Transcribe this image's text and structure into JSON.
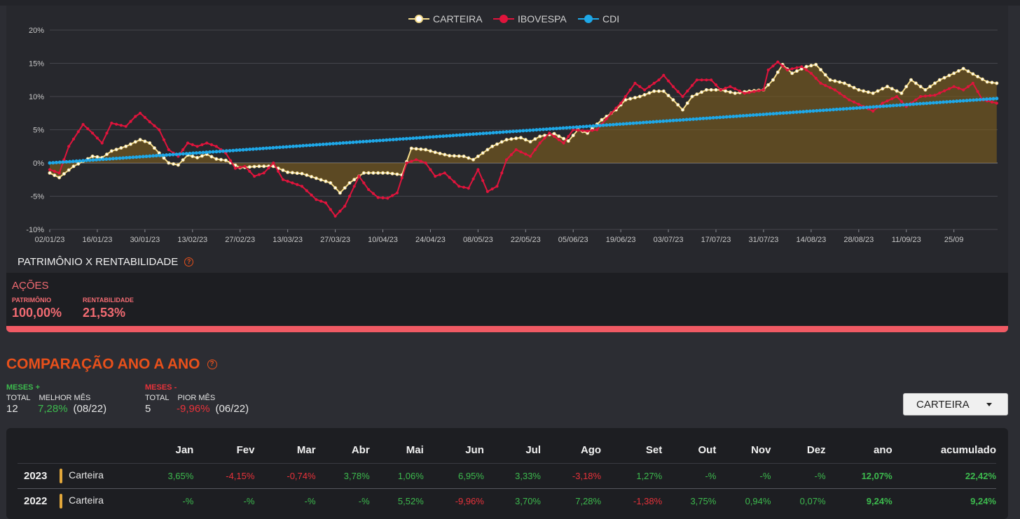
{
  "chart": {
    "legend": [
      {
        "label": "CARTEIRA",
        "color": "#f5dc8c"
      },
      {
        "label": "IBOVESPA",
        "color": "#e0143c"
      },
      {
        "label": "CDI",
        "color": "#1ea8e8"
      }
    ],
    "y_ticks": [
      "20%",
      "15%",
      "10%",
      "5%",
      "0%",
      "-5%",
      "-10%"
    ],
    "x_ticks": [
      "02/01/23",
      "16/01/23",
      "30/01/23",
      "13/02/23",
      "27/02/23",
      "13/03/23",
      "27/03/23",
      "10/04/23",
      "24/04/23",
      "08/05/23",
      "22/05/23",
      "05/06/23",
      "19/06/23",
      "03/07/23",
      "17/07/23",
      "31/07/23",
      "14/08/23",
      "28/08/23",
      "11/09/23",
      "25/09"
    ]
  },
  "chart_data": {
    "type": "line",
    "title": "",
    "ylim": [
      -10,
      20
    ],
    "y_unit": "%",
    "series": [
      {
        "name": "CARTEIRA",
        "color": "#f5dc8c",
        "filled": true,
        "points": [
          [
            0,
            -1.5
          ],
          [
            0.2,
            -2.2
          ],
          [
            0.5,
            -0.5
          ],
          [
            0.9,
            1.0
          ],
          [
            1.1,
            0.8
          ],
          [
            1.3,
            1.8
          ],
          [
            1.6,
            2.5
          ],
          [
            1.9,
            3.5
          ],
          [
            2.1,
            3.0
          ],
          [
            2.3,
            1.5
          ],
          [
            2.5,
            0
          ],
          [
            2.7,
            -0.3
          ],
          [
            2.9,
            1.2
          ],
          [
            3.1,
            0.8
          ],
          [
            3.3,
            1.3
          ],
          [
            3.5,
            0.6
          ],
          [
            3.7,
            0.4
          ],
          [
            4.0,
            -0.7
          ],
          [
            4.4,
            -0.5
          ],
          [
            4.7,
            -0.5
          ],
          [
            5.0,
            -1.4
          ],
          [
            5.3,
            -1.6
          ],
          [
            5.6,
            -2.3
          ],
          [
            5.9,
            -3.0
          ],
          [
            6.1,
            -4.5
          ],
          [
            6.3,
            -3.0
          ],
          [
            6.6,
            -1.5
          ],
          [
            6.9,
            -1.5
          ],
          [
            7.1,
            -1.5
          ],
          [
            7.4,
            -1.8
          ],
          [
            7.6,
            2.2
          ],
          [
            7.9,
            2.0
          ],
          [
            8.1,
            1.6
          ],
          [
            8.4,
            1.1
          ],
          [
            8.7,
            1.0
          ],
          [
            8.9,
            0.5
          ],
          [
            9.1,
            1.5
          ],
          [
            9.3,
            2.5
          ],
          [
            9.6,
            3.5
          ],
          [
            9.9,
            3.8
          ],
          [
            10.1,
            3.2
          ],
          [
            10.3,
            4.0
          ],
          [
            10.6,
            4.4
          ],
          [
            10.9,
            3.3
          ],
          [
            11.1,
            5.0
          ],
          [
            11.3,
            4.5
          ],
          [
            11.6,
            6.5
          ],
          [
            11.9,
            8.0
          ],
          [
            12.1,
            9.5
          ],
          [
            12.4,
            10.0
          ],
          [
            12.7,
            10.8
          ],
          [
            12.9,
            10.8
          ],
          [
            13.1,
            9.5
          ],
          [
            13.3,
            8.0
          ],
          [
            13.5,
            10.0
          ],
          [
            13.8,
            11.0
          ],
          [
            14.1,
            11.0
          ],
          [
            14.4,
            10.5
          ],
          [
            14.7,
            10.8
          ],
          [
            15.0,
            11.0
          ],
          [
            15.2,
            12.5
          ],
          [
            15.4,
            14.8
          ],
          [
            15.6,
            13.5
          ],
          [
            15.9,
            14.5
          ],
          [
            16.1,
            14.8
          ],
          [
            16.4,
            12.5
          ],
          [
            16.7,
            12.0
          ],
          [
            17.0,
            11.0
          ],
          [
            17.3,
            10.5
          ],
          [
            17.6,
            11.5
          ],
          [
            17.9,
            10.5
          ],
          [
            18.1,
            12.5
          ],
          [
            18.4,
            11.0
          ],
          [
            18.7,
            12.5
          ],
          [
            19.0,
            13.5
          ],
          [
            19.2,
            14.2
          ],
          [
            19.5,
            13.0
          ],
          [
            19.7,
            12.2
          ],
          [
            19.9,
            12.0
          ]
        ]
      },
      {
        "name": "IBOVESPA",
        "color": "#e0143c",
        "filled": false,
        "points": [
          [
            0,
            -1.0
          ],
          [
            0.2,
            -1.5
          ],
          [
            0.4,
            2.5
          ],
          [
            0.7,
            5.8
          ],
          [
            0.9,
            4.5
          ],
          [
            1.1,
            3.0
          ],
          [
            1.3,
            6.0
          ],
          [
            1.6,
            5.5
          ],
          [
            1.8,
            7.0
          ],
          [
            1.9,
            7.5
          ],
          [
            2.1,
            6.2
          ],
          [
            2.3,
            5.0
          ],
          [
            2.5,
            2.0
          ],
          [
            2.7,
            1.0
          ],
          [
            2.9,
            3.0
          ],
          [
            3.1,
            2.5
          ],
          [
            3.3,
            3.0
          ],
          [
            3.5,
            2.5
          ],
          [
            3.7,
            1.5
          ],
          [
            3.9,
            -0.8
          ],
          [
            4.1,
            -0.5
          ],
          [
            4.3,
            -2.0
          ],
          [
            4.5,
            -1.5
          ],
          [
            4.7,
            0.0
          ],
          [
            4.9,
            -2.5
          ],
          [
            5.1,
            -3.0
          ],
          [
            5.3,
            -3.5
          ],
          [
            5.6,
            -5.5
          ],
          [
            5.8,
            -6.0
          ],
          [
            6.0,
            -8.0
          ],
          [
            6.2,
            -6.5
          ],
          [
            6.5,
            -2.0
          ],
          [
            6.7,
            -4.0
          ],
          [
            6.9,
            -5.2
          ],
          [
            7.1,
            -5.3
          ],
          [
            7.3,
            -4.5
          ],
          [
            7.5,
            0
          ],
          [
            7.7,
            0.5
          ],
          [
            7.9,
            0
          ],
          [
            8.1,
            -2.0
          ],
          [
            8.3,
            -1.5
          ],
          [
            8.6,
            -3.5
          ],
          [
            8.8,
            -3.8
          ],
          [
            9.0,
            -1.0
          ],
          [
            9.2,
            -4.3
          ],
          [
            9.4,
            -3.5
          ],
          [
            9.6,
            0.5
          ],
          [
            9.8,
            2.0
          ],
          [
            10.1,
            1.0
          ],
          [
            10.3,
            3.0
          ],
          [
            10.5,
            4.5
          ],
          [
            10.8,
            3.0
          ],
          [
            11.0,
            5.0
          ],
          [
            11.3,
            4.8
          ],
          [
            11.5,
            5.0
          ],
          [
            11.8,
            7.5
          ],
          [
            12.0,
            9.0
          ],
          [
            12.3,
            12.0
          ],
          [
            12.5,
            11.0
          ],
          [
            12.8,
            12.5
          ],
          [
            12.9,
            13.2
          ],
          [
            13.1,
            11.5
          ],
          [
            13.3,
            10.0
          ],
          [
            13.6,
            12.5
          ],
          [
            13.9,
            12.5
          ],
          [
            14.1,
            11.0
          ],
          [
            14.3,
            11.5
          ],
          [
            14.6,
            10.5
          ],
          [
            15.0,
            11.0
          ],
          [
            15.1,
            14.0
          ],
          [
            15.3,
            15.2
          ],
          [
            15.5,
            14.0
          ],
          [
            15.8,
            14.5
          ],
          [
            16.0,
            13.5
          ],
          [
            16.2,
            12.0
          ],
          [
            16.5,
            11.0
          ],
          [
            16.8,
            9.5
          ],
          [
            17.1,
            8.5
          ],
          [
            17.3,
            7.8
          ],
          [
            17.5,
            9.0
          ],
          [
            17.8,
            10.0
          ],
          [
            18.0,
            8.5
          ],
          [
            18.3,
            10.0
          ],
          [
            18.6,
            10.2
          ],
          [
            19.0,
            11.5
          ],
          [
            19.2,
            11.0
          ],
          [
            19.4,
            12.0
          ],
          [
            19.6,
            9.5
          ],
          [
            19.9,
            9.0
          ]
        ]
      },
      {
        "name": "CDI",
        "color": "#1ea8e8",
        "filled": false,
        "points": [
          [
            0,
            0
          ],
          [
            19.9,
            9.7
          ]
        ]
      }
    ],
    "x_tick_labels": [
      "02/01/23",
      "16/01/23",
      "30/01/23",
      "13/02/23",
      "27/02/23",
      "13/03/23",
      "27/03/23",
      "10/04/23",
      "24/04/23",
      "08/05/23",
      "22/05/23",
      "05/06/23",
      "19/06/23",
      "03/07/23",
      "17/07/23",
      "31/07/23",
      "14/08/23",
      "28/08/23",
      "11/09/23",
      "25/09"
    ],
    "y_tick_labels": [
      "20%",
      "15%",
      "10%",
      "5%",
      "0%",
      "-5%",
      "-10%"
    ],
    "legend_position": "top-center",
    "grid": true
  },
  "patrimonio": {
    "title": "PATRIMÔNIO X RENTABILIDADE",
    "help": "?",
    "class_name": "AÇÕES",
    "patrimonio_label": "PATRIMÔNIO",
    "patrimonio_value": "100,00%",
    "rentabilidade_label": "RENTABILIDADE",
    "rentabilidade_value": "21,53%"
  },
  "comparacao": {
    "title": "COMPARAÇÃO ANO A ANO",
    "help": "?",
    "pos": {
      "head": "MESES +",
      "total_label": "TOTAL",
      "total": "12",
      "best_label": "MELHOR MÊS",
      "best_value": "7,28%",
      "best_period": "(08/22)"
    },
    "neg": {
      "head": "MESES -",
      "total_label": "TOTAL",
      "total": "5",
      "worst_label": "PIOR MÊS",
      "worst_value": "-9,96%",
      "worst_period": "(06/22)"
    },
    "dropdown": "CARTEIRA",
    "columns": [
      "",
      "",
      "Jan",
      "Fev",
      "Mar",
      "Abr",
      "Mai",
      "Jun",
      "Jul",
      "Ago",
      "Set",
      "Out",
      "Nov",
      "Dez",
      "ano",
      "acumulado"
    ],
    "rows": [
      {
        "year": "2023",
        "name": "Carteira",
        "values": [
          "3,65%",
          "-4,15%",
          "-0,74%",
          "3,78%",
          "1,06%",
          "6,95%",
          "3,33%",
          "-3,18%",
          "1,27%",
          "-%",
          "-%",
          "-%",
          "12,07%",
          "22,42%"
        ]
      },
      {
        "year": "2022",
        "name": "Carteira",
        "values": [
          "-%",
          "-%",
          "-%",
          "-%",
          "5,52%",
          "-9,96%",
          "3,70%",
          "7,28%",
          "-1,38%",
          "3,75%",
          "0,94%",
          "0,07%",
          "9,24%",
          "9,24%"
        ]
      }
    ]
  }
}
